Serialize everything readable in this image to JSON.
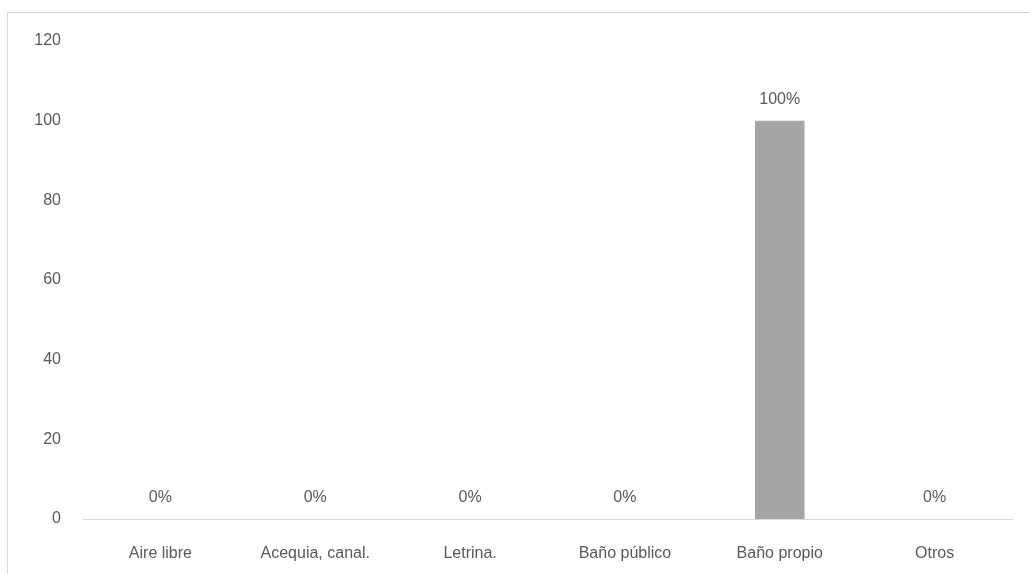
{
  "chart_data": {
    "type": "bar",
    "categories": [
      "Aire libre",
      "Acequia, canal.",
      "Letrina.",
      "Baño público",
      "Baño propio",
      "Otros"
    ],
    "values": [
      0,
      0,
      0,
      0,
      100,
      0
    ],
    "value_labels": [
      "0%",
      "0%",
      "0%",
      "0%",
      "100%",
      "0%"
    ],
    "color": "#a5a5a5",
    "ylim": [
      0,
      120
    ],
    "yticks": [
      0,
      20,
      40,
      60,
      80,
      100,
      120
    ],
    "grid": false
  }
}
